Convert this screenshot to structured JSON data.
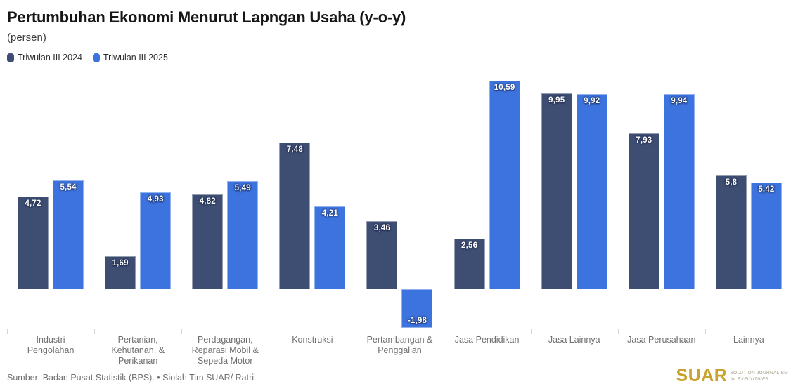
{
  "header": {
    "title": "Pertumbuhan Ekonomi Menurut Lapngan Usaha (y-o-y)",
    "subtitle": "(persen)"
  },
  "legend": {
    "items": [
      {
        "label": "Triwulan III 2024",
        "color": "#3E4D72"
      },
      {
        "label": "Triwulan III 2025",
        "color": "#3D73DE"
      }
    ]
  },
  "chart_data": {
    "type": "bar",
    "title": "Pertumbuhan Ekonomi Menurut Lapngan Usaha (y-o-y)",
    "subtitle": "(persen)",
    "categories": [
      "Industri Pengolahan",
      "Pertanian, Kehutanan, & Perikanan",
      "Perdagangan, Reparasi Mobil & Sepeda Motor",
      "Konstruksi",
      "Pertambangan & Penggalian",
      "Jasa Pendidikan",
      "Jasa Lainnya",
      "Jasa Perusahaan",
      "Lainnya"
    ],
    "series": [
      {
        "name": "Triwulan III 2024",
        "color": "#3E4D72",
        "values": [
          4.72,
          1.69,
          4.82,
          7.48,
          3.46,
          2.56,
          9.95,
          7.93,
          5.8
        ]
      },
      {
        "name": "Triwulan III 2025",
        "color": "#3D73DE",
        "values": [
          5.54,
          4.93,
          5.49,
          4.21,
          -1.98,
          10.59,
          9.92,
          9.94,
          5.42
        ]
      }
    ],
    "value_labels_visible": true,
    "decimal_separator": ",",
    "ylim": [
      -2,
      11.2
    ],
    "grid": false,
    "legend_position": "top-left",
    "baseline": 0
  },
  "footer": {
    "source": "Sumber: Badan Pusat Statistik (BPS). • Siolah Tim SUAR/ Ratri.",
    "logo": {
      "text": "SUAR",
      "color": "#C8A42E",
      "tagline_line1": "SOLUTION JOURNALISM",
      "tagline_line2": "for EXECUTIVES"
    }
  }
}
